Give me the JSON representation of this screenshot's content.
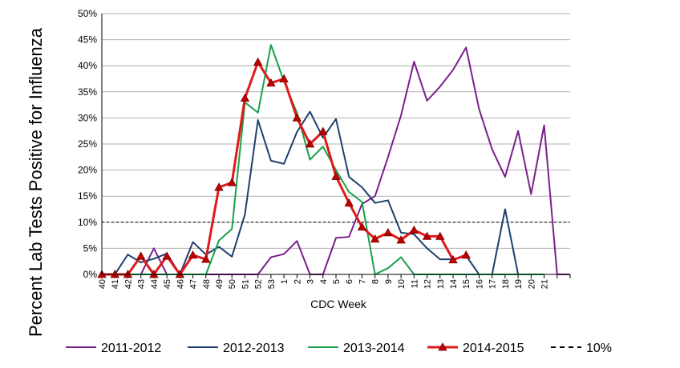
{
  "chart_data": {
    "type": "line",
    "title": "",
    "xlabel": "CDC Week",
    "ylabel": "Percent Lab Tests Positive for Influenza",
    "ylim": [
      0,
      50
    ],
    "yticks": [
      "0%",
      "5%",
      "10%",
      "15%",
      "20%",
      "25%",
      "30%",
      "35%",
      "40%",
      "45%",
      "50%"
    ],
    "grid": "horizontal",
    "legend_position": "bottom",
    "categories": [
      "40",
      "41",
      "42",
      "43",
      "44",
      "45",
      "46",
      "47",
      "48",
      "49",
      "50",
      "51",
      "52",
      "53",
      "1",
      "2",
      "3",
      "4",
      "5",
      "6",
      "7",
      "8",
      "9",
      "10",
      "11",
      "12",
      "13",
      "14",
      "15",
      "16",
      "17",
      "18",
      "19",
      "20",
      "21",
      "",
      ""
    ],
    "series": [
      {
        "name": "2011-2012",
        "color": "#7b1f8c",
        "values": [
          0,
          0,
          0,
          0,
          5,
          0,
          0,
          0,
          0,
          0,
          0,
          0,
          0,
          3.3,
          3.9,
          6.4,
          0,
          0,
          7,
          7.2,
          13.5,
          15,
          22.5,
          30.5,
          40.8,
          33.3,
          36,
          39.2,
          43.5,
          31.7,
          24,
          18.7,
          27.5,
          15.4,
          28.6,
          0,
          0
        ]
      },
      {
        "name": "2012-2013",
        "color": "#1f3f6e",
        "values": [
          0,
          0,
          3.8,
          2.3,
          3,
          4,
          0,
          6.2,
          3.8,
          5.3,
          3.4,
          11.5,
          29.6,
          21.8,
          21.2,
          27.3,
          31.2,
          26.2,
          29.8,
          18.7,
          16.7,
          13.7,
          14.2,
          8,
          7.7,
          5,
          2.9,
          2.9,
          3.6,
          0,
          0,
          12.5,
          0,
          null,
          null,
          null,
          null
        ]
      },
      {
        "name": "2013-2014",
        "color": "#19a04a",
        "values": [
          0,
          0,
          0,
          0,
          0,
          0,
          0,
          0,
          0,
          6.5,
          8.7,
          33,
          31,
          44,
          37,
          31,
          22,
          24.5,
          20,
          15.8,
          13.9,
          0,
          1.2,
          3.3,
          0,
          0,
          0,
          0,
          0,
          0,
          0,
          0,
          0,
          0,
          0,
          null,
          null
        ]
      },
      {
        "name": "2014-2015",
        "color": "#e01a1a",
        "marker": "triangle",
        "marker_color": "#c00000",
        "values": [
          0,
          0,
          0,
          3.5,
          0,
          3.5,
          0,
          3.7,
          2.9,
          16.7,
          17.6,
          33.8,
          40.7,
          36.7,
          37.5,
          30,
          25,
          27.4,
          18.8,
          13.7,
          9.1,
          6.8,
          8,
          6.6,
          8.5,
          7.3,
          7.3,
          2.8,
          3.7,
          null,
          null,
          null,
          null,
          null,
          null,
          null,
          null
        ]
      }
    ],
    "reference_line": {
      "name": "10%",
      "value": 10,
      "style": "dashed",
      "color": "#000000"
    }
  }
}
